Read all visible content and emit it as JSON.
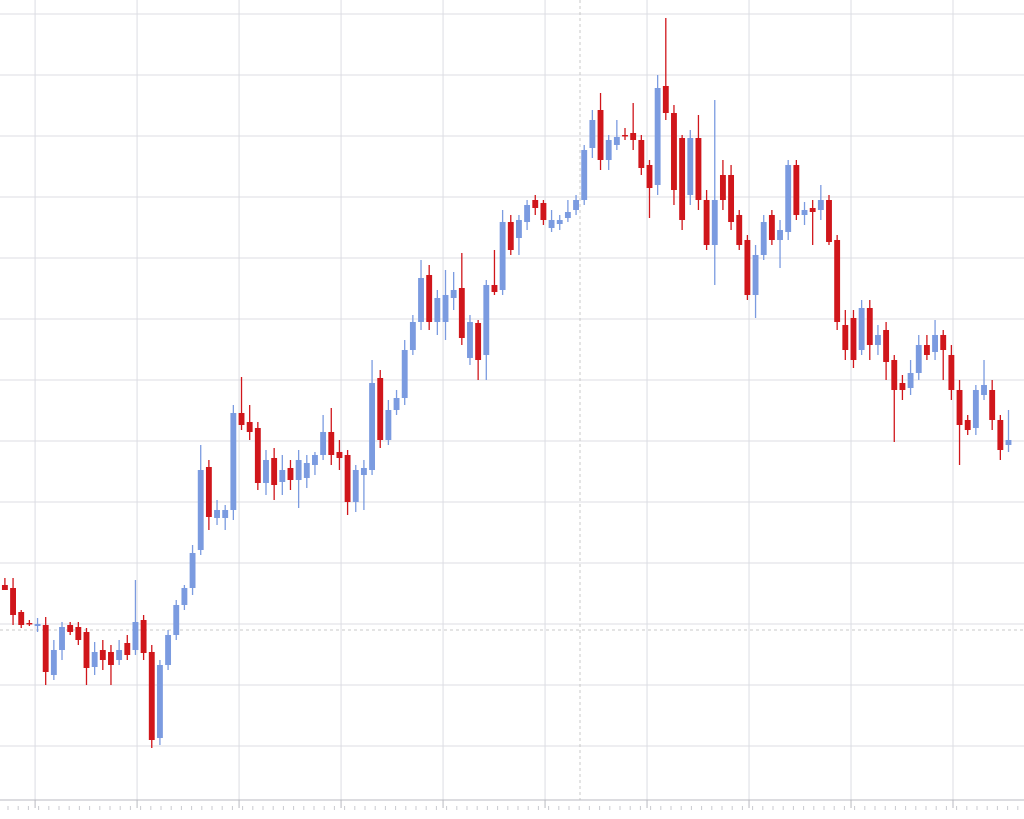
{
  "chart_data": {
    "type": "candlestick",
    "up_color": "#7b9be0",
    "down_color": "#d0161b",
    "grid": true,
    "grid_color": "#dcdde3",
    "ylim": [
      0,
      800
    ],
    "yticks": [
      54,
      115,
      176,
      237,
      298,
      359,
      420,
      481,
      542,
      603,
      664,
      725,
      786
    ],
    "xlim": [
      -0.6,
      124.9
    ],
    "xticks": [
      3.7,
      16.2,
      28.7,
      41.2,
      53.7,
      66.2,
      78.7,
      91.2,
      103.7,
      116.2
    ],
    "open": [
      215,
      212,
      188,
      177,
      174,
      175,
      125,
      150,
      175,
      173,
      168,
      133,
      150,
      148,
      140,
      157,
      150,
      180,
      148,
      62,
      135,
      165,
      195,
      212,
      250,
      333,
      282,
      282,
      290,
      387,
      378,
      372,
      317,
      342,
      318,
      332,
      320,
      322,
      335,
      345,
      368,
      348,
      345,
      298,
      325,
      330,
      422,
      360,
      390,
      402,
      450,
      478,
      525,
      478,
      478,
      502,
      512,
      442,
      477,
      445,
      515,
      510,
      578,
      562,
      578,
      600,
      597,
      572,
      576,
      582,
      590,
      600,
      652,
      690,
      640,
      655,
      665,
      667,
      660,
      635,
      615,
      714,
      687,
      662,
      605,
      662,
      600,
      555,
      625,
      625,
      585,
      560,
      505,
      545,
      585,
      560,
      568,
      635,
      585,
      592,
      590,
      600,
      560,
      475,
      482,
      450,
      492,
      455,
      470,
      440,
      417,
      412,
      427,
      455,
      448,
      465,
      445,
      410,
      380,
      372,
      405,
      410,
      380,
      355
    ],
    "high": [
      222,
      222,
      190,
      180,
      182,
      183,
      160,
      178,
      178,
      178,
      172,
      158,
      160,
      155,
      160,
      165,
      220,
      185,
      155,
      140,
      170,
      200,
      215,
      255,
      355,
      340,
      300,
      295,
      395,
      423,
      395,
      378,
      350,
      352,
      345,
      340,
      350,
      345,
      348,
      385,
      392,
      360,
      350,
      335,
      340,
      440,
      430,
      400,
      410,
      460,
      485,
      540,
      535,
      510,
      530,
      528,
      547,
      485,
      480,
      520,
      550,
      590,
      585,
      585,
      600,
      605,
      600,
      590,
      585,
      600,
      605,
      655,
      690,
      707,
      665,
      680,
      672,
      697,
      665,
      640,
      725,
      782,
      695,
      665,
      670,
      685,
      610,
      700,
      640,
      635,
      590,
      565,
      555,
      585,
      590,
      580,
      640,
      640,
      598,
      600,
      615,
      605,
      565,
      490,
      490,
      500,
      500,
      475,
      478,
      445,
      425,
      440,
      465,
      465,
      480,
      470,
      455,
      420,
      385,
      415,
      440,
      420,
      385,
      390
    ],
    "low": [
      210,
      175,
      172,
      174,
      168,
      115,
      120,
      140,
      165,
      155,
      115,
      125,
      130,
      115,
      135,
      140,
      145,
      140,
      52,
      55,
      130,
      160,
      190,
      205,
      245,
      270,
      275,
      270,
      280,
      370,
      360,
      310,
      305,
      300,
      305,
      310,
      292,
      312,
      325,
      340,
      335,
      330,
      285,
      288,
      290,
      325,
      352,
      355,
      385,
      395,
      445,
      470,
      470,
      465,
      460,
      490,
      455,
      435,
      420,
      420,
      505,
      505,
      545,
      545,
      570,
      585,
      575,
      568,
      570,
      578,
      585,
      595,
      642,
      630,
      630,
      650,
      660,
      650,
      625,
      582,
      605,
      680,
      595,
      570,
      595,
      590,
      550,
      515,
      590,
      570,
      550,
      500,
      482,
      540,
      555,
      532,
      560,
      580,
      575,
      555,
      580,
      555,
      470,
      440,
      432,
      445,
      440,
      445,
      420,
      358,
      400,
      405,
      420,
      440,
      440,
      420,
      400,
      335,
      365,
      365,
      400,
      370,
      340,
      348
    ],
    "close": [
      210,
      185,
      175,
      176,
      176,
      128,
      150,
      173,
      168,
      160,
      132,
      148,
      140,
      135,
      150,
      145,
      178,
      147,
      60,
      135,
      165,
      195,
      212,
      247,
      330,
      283,
      290,
      290,
      387,
      375,
      368,
      317,
      340,
      315,
      330,
      320,
      340,
      337,
      345,
      368,
      345,
      342,
      298,
      330,
      332,
      417,
      360,
      390,
      402,
      450,
      478,
      522,
      478,
      502,
      505,
      510,
      462,
      478,
      440,
      515,
      508,
      578,
      550,
      580,
      595,
      592,
      580,
      580,
      580,
      588,
      600,
      650,
      680,
      640,
      660,
      663,
      664,
      660,
      632,
      612,
      712,
      687,
      610,
      580,
      662,
      600,
      555,
      600,
      600,
      578,
      555,
      505,
      545,
      578,
      560,
      570,
      635,
      585,
      590,
      588,
      600,
      558,
      478,
      450,
      440,
      492,
      455,
      465,
      438,
      410,
      410,
      427,
      455,
      445,
      465,
      450,
      410,
      375,
      370,
      410,
      415,
      380,
      350,
      360
    ]
  }
}
